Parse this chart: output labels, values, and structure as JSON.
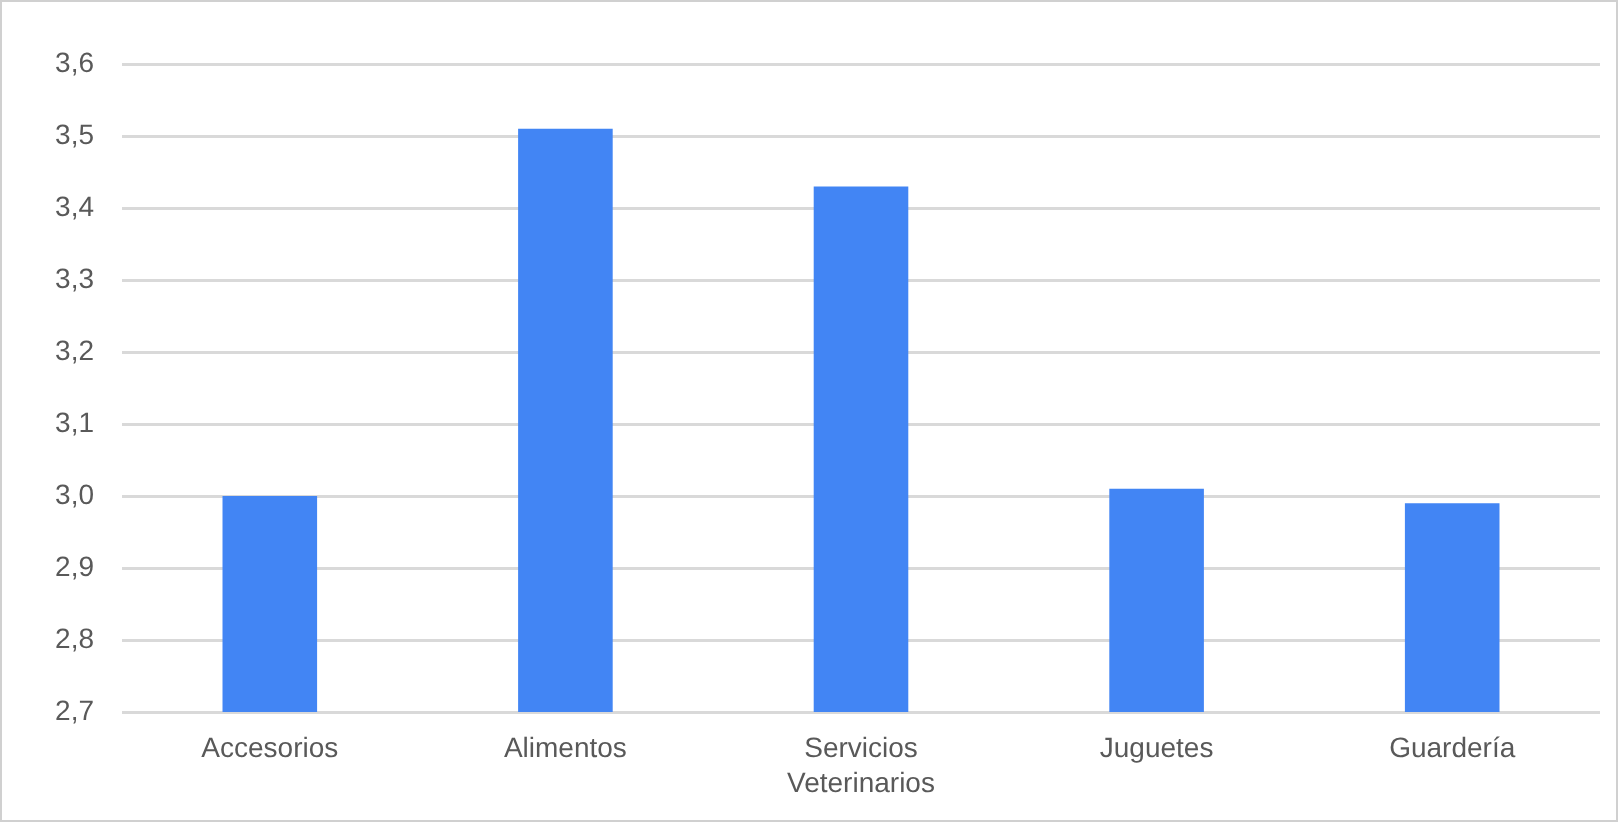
{
  "chart_data": {
    "type": "bar",
    "categories": [
      "Accesorios",
      "Alimentos",
      "Servicios Veterinarios",
      "Juguetes",
      "Guardería"
    ],
    "values": [
      3.0,
      3.51,
      3.43,
      3.01,
      2.99
    ],
    "color": "#4285f4",
    "ylim": [
      2.7,
      3.6
    ],
    "yticks": [
      {
        "value": 2.7,
        "label": "2,7"
      },
      {
        "value": 2.8,
        "label": "2,8"
      },
      {
        "value": 2.9,
        "label": "2,9"
      },
      {
        "value": 3.0,
        "label": "3,0"
      },
      {
        "value": 3.1,
        "label": "3,1"
      },
      {
        "value": 3.2,
        "label": "3,2"
      },
      {
        "value": 3.3,
        "label": "3,3"
      },
      {
        "value": 3.4,
        "label": "3,4"
      },
      {
        "value": 3.5,
        "label": "3,5"
      },
      {
        "value": 3.6,
        "label": "3,6"
      }
    ],
    "grid": "y"
  }
}
